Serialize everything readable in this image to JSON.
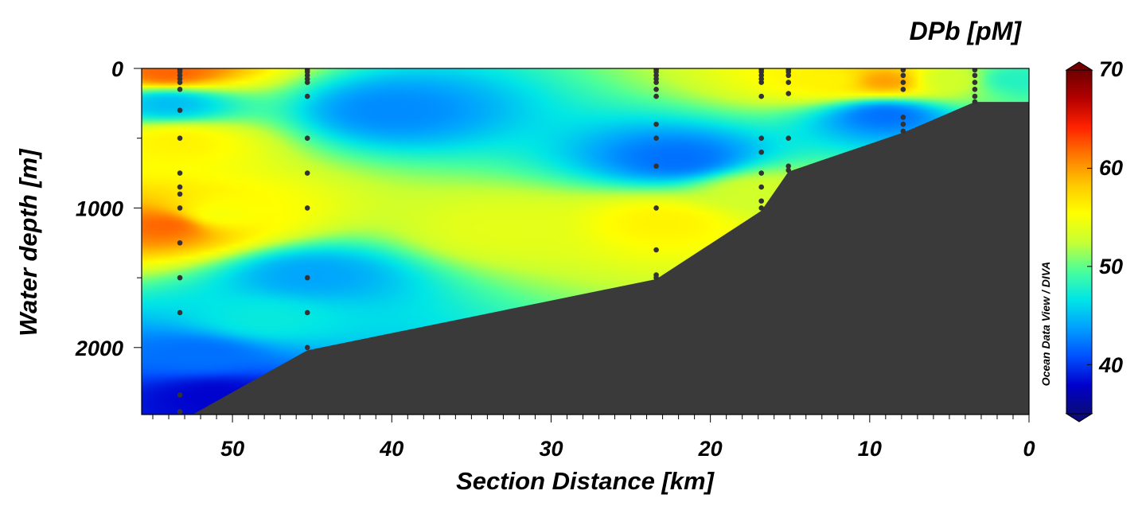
{
  "chart_data": {
    "type": "heatmap",
    "xlabel": "Section Distance [km]",
    "ylabel": "Water depth [m]",
    "xlim": [
      55.7,
      0
    ],
    "ylim": [
      0,
      2480
    ],
    "x_ticks": [
      50,
      40,
      30,
      20,
      10,
      0
    ],
    "y_ticks": [
      0,
      1000,
      2000
    ],
    "colorbar": {
      "title": "DPb [pM]",
      "range": [
        35,
        70
      ],
      "ticks": [
        40,
        50,
        60,
        70
      ],
      "label_ticks": [
        70,
        60,
        50,
        40
      ],
      "colormap": [
        "#0a0a7a",
        "#0000cc",
        "#0050ff",
        "#00a0ff",
        "#00e6e6",
        "#4cff9a",
        "#c8ff32",
        "#ffff00",
        "#ffc800",
        "#ff7a00",
        "#ff2200",
        "#b40000",
        "#6e0000"
      ]
    },
    "stations": [
      {
        "distance_km": 53.3,
        "depths_m": [
          10,
          25,
          50,
          75,
          100,
          150,
          300,
          500,
          750,
          850,
          900,
          1000,
          1250,
          1500,
          1750,
          2340,
          2460
        ]
      },
      {
        "distance_km": 45.3,
        "depths_m": [
          10,
          25,
          50,
          75,
          100,
          200,
          500,
          750,
          1000,
          1500,
          1750,
          2000
        ]
      },
      {
        "distance_km": 23.4,
        "depths_m": [
          10,
          25,
          50,
          75,
          100,
          150,
          200,
          400,
          500,
          700,
          1000,
          1300,
          1480,
          1500
        ]
      },
      {
        "distance_km": 16.8,
        "depths_m": [
          10,
          25,
          50,
          75,
          100,
          200,
          500,
          600,
          750,
          850,
          950,
          1000
        ]
      },
      {
        "distance_km": 15.1,
        "depths_m": [
          10,
          25,
          50,
          100,
          180,
          500,
          700,
          730
        ]
      },
      {
        "distance_km": 7.9,
        "depths_m": [
          10,
          50,
          100,
          150,
          350,
          400,
          450
        ]
      },
      {
        "distance_km": 3.4,
        "depths_m": [
          10,
          50,
          100,
          150,
          200,
          240
        ]
      }
    ],
    "bathymetry": [
      {
        "distance_km": 55.7,
        "depth_m": 2480
      },
      {
        "distance_km": 52.5,
        "depth_m": 2480
      },
      {
        "distance_km": 45.3,
        "depth_m": 2020
      },
      {
        "distance_km": 23.4,
        "depth_m": 1510
      },
      {
        "distance_km": 16.8,
        "depth_m": 1020
      },
      {
        "distance_km": 15.1,
        "depth_m": 740
      },
      {
        "distance_km": 7.9,
        "depth_m": 460
      },
      {
        "distance_km": 3.4,
        "depth_m": 240
      },
      {
        "distance_km": 0,
        "depth_m": 240
      }
    ],
    "concentration_field": [
      {
        "distance_km": 54.0,
        "depth_m": 30,
        "value_pM": 62
      },
      {
        "distance_km": 53.5,
        "depth_m": 520,
        "value_pM": 56
      },
      {
        "distance_km": 54.0,
        "depth_m": 1120,
        "value_pM": 62
      },
      {
        "distance_km": 51.0,
        "depth_m": 1050,
        "value_pM": 55
      },
      {
        "distance_km": 54.0,
        "depth_m": 250,
        "value_pM": 45
      },
      {
        "distance_km": 40.0,
        "depth_m": 300,
        "value_pM": 43
      },
      {
        "distance_km": 22.0,
        "depth_m": 650,
        "value_pM": 42
      },
      {
        "distance_km": 9.0,
        "depth_m": 330,
        "value_pM": 42
      },
      {
        "distance_km": 23.0,
        "depth_m": 1100,
        "value_pM": 56
      },
      {
        "distance_km": 33.0,
        "depth_m": 1150,
        "value_pM": 54
      },
      {
        "distance_km": 17.0,
        "depth_m": 880,
        "value_pM": 53
      },
      {
        "distance_km": 9.0,
        "depth_m": 90,
        "value_pM": 60
      },
      {
        "distance_km": 12.5,
        "depth_m": 80,
        "value_pM": 56
      },
      {
        "distance_km": 5.0,
        "depth_m": 80,
        "value_pM": 53
      },
      {
        "distance_km": 45.0,
        "depth_m": 1480,
        "value_pM": 44
      },
      {
        "distance_km": 52.0,
        "depth_m": 2050,
        "value_pM": 42
      },
      {
        "distance_km": 51.0,
        "depth_m": 2350,
        "value_pM": 38
      },
      {
        "distance_km": 48.0,
        "depth_m": 1800,
        "value_pM": 47
      },
      {
        "distance_km": 1.0,
        "depth_m": 80,
        "value_pM": 48
      }
    ],
    "credit": "Ocean Data View / DIVA"
  }
}
